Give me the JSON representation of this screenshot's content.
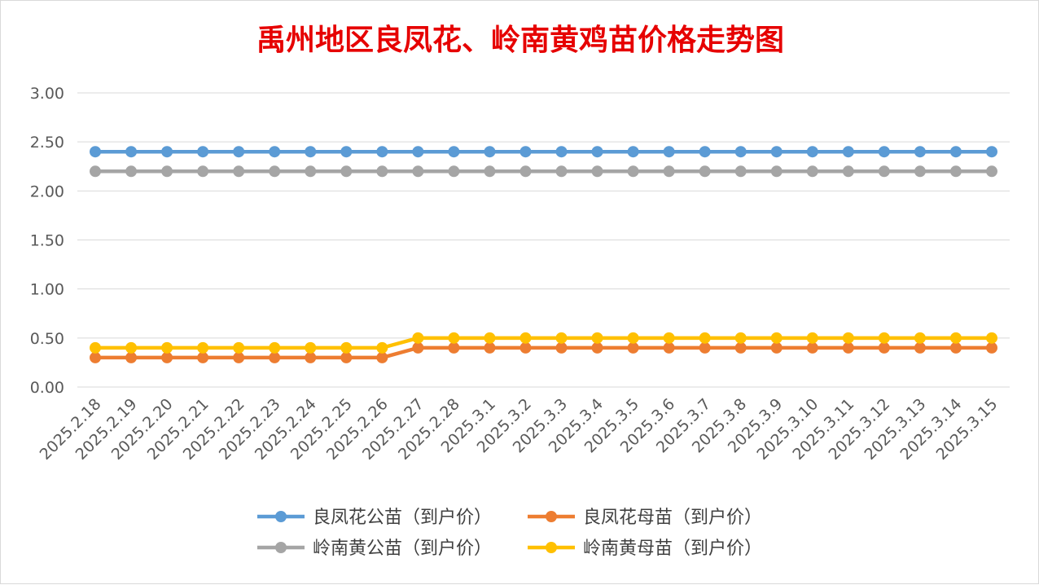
{
  "chart_data": {
    "type": "line",
    "title": "禹州地区良凤花、岭南黄鸡苗价格走势图",
    "title_color": "#e60000",
    "xlabel": "",
    "ylabel": "",
    "ylim": [
      0,
      3
    ],
    "y_ticks": [
      "0.00",
      "0.50",
      "1.00",
      "1.50",
      "2.00",
      "2.50",
      "3.00"
    ],
    "grid": true,
    "legend_position": "bottom",
    "categories": [
      "2025.2.18",
      "2025.2.19",
      "2025.2.20",
      "2025.2.21",
      "2025.2.22",
      "2025.2.23",
      "2025.2.24",
      "2025.2.25",
      "2025.2.26",
      "2025.2.27",
      "2025.2.28",
      "2025.3.1",
      "2025.3.2",
      "2025.3.3",
      "2025.3.4",
      "2025.3.5",
      "2025.3.6",
      "2025.3.7",
      "2025.3.8",
      "2025.3.9",
      "2025.3.10",
      "2025.3.11",
      "2025.3.12",
      "2025.3.13",
      "2025.3.14",
      "2025.3.15"
    ],
    "series": [
      {
        "name": "良凤花公苗（到户价）",
        "color": "#5b9bd5",
        "values": [
          2.4,
          2.4,
          2.4,
          2.4,
          2.4,
          2.4,
          2.4,
          2.4,
          2.4,
          2.4,
          2.4,
          2.4,
          2.4,
          2.4,
          2.4,
          2.4,
          2.4,
          2.4,
          2.4,
          2.4,
          2.4,
          2.4,
          2.4,
          2.4,
          2.4,
          2.4
        ]
      },
      {
        "name": "良凤花母苗（到户价）",
        "color": "#ed7d31",
        "values": [
          0.3,
          0.3,
          0.3,
          0.3,
          0.3,
          0.3,
          0.3,
          0.3,
          0.3,
          0.4,
          0.4,
          0.4,
          0.4,
          0.4,
          0.4,
          0.4,
          0.4,
          0.4,
          0.4,
          0.4,
          0.4,
          0.4,
          0.4,
          0.4,
          0.4,
          0.4
        ]
      },
      {
        "name": "岭南黄公苗（到户价）",
        "color": "#a5a5a5",
        "values": [
          2.2,
          2.2,
          2.2,
          2.2,
          2.2,
          2.2,
          2.2,
          2.2,
          2.2,
          2.2,
          2.2,
          2.2,
          2.2,
          2.2,
          2.2,
          2.2,
          2.2,
          2.2,
          2.2,
          2.2,
          2.2,
          2.2,
          2.2,
          2.2,
          2.2,
          2.2
        ]
      },
      {
        "name": "岭南黄母苗（到户价）",
        "color": "#ffc000",
        "values": [
          0.4,
          0.4,
          0.4,
          0.4,
          0.4,
          0.4,
          0.4,
          0.4,
          0.4,
          0.5,
          0.5,
          0.5,
          0.5,
          0.5,
          0.5,
          0.5,
          0.5,
          0.5,
          0.5,
          0.5,
          0.5,
          0.5,
          0.5,
          0.5,
          0.5,
          0.5
        ]
      }
    ]
  }
}
